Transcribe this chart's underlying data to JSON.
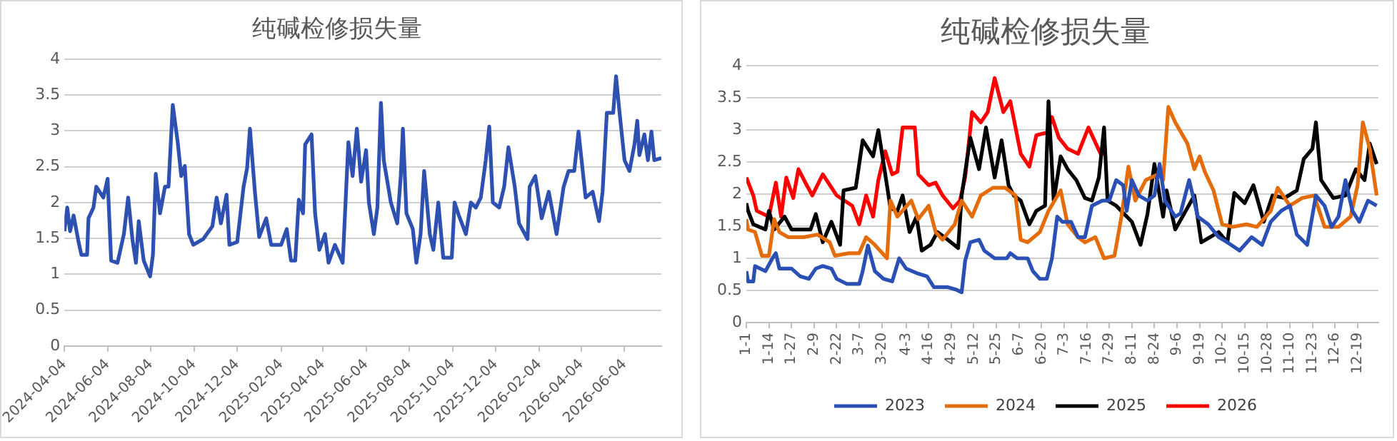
{
  "chart_data": [
    {
      "type": "line",
      "title": "纯碱检修损失量",
      "color": "#2e50b0",
      "grid": "y",
      "x": [
        "2024-04-04",
        "2024-04-08",
        "2024-04-12",
        "2024-04-17",
        "2024-04-24",
        "2024-04-28",
        "2024-05-06",
        "2024-05-08",
        "2024-05-15",
        "2024-05-19",
        "2024-05-29",
        "2024-06-04",
        "2024-06-09",
        "2024-06-18",
        "2024-06-27",
        "2024-07-03",
        "2024-07-09",
        "2024-07-14",
        "2024-07-18",
        "2024-07-25",
        "2024-08-03",
        "2024-08-07",
        "2024-08-11",
        "2024-08-17",
        "2024-08-24",
        "2024-08-29",
        "2024-09-04",
        "2024-09-11",
        "2024-09-16",
        "2024-09-21",
        "2024-09-27",
        "2024-10-03",
        "2024-10-17",
        "2024-10-30",
        "2024-11-05",
        "2024-11-11",
        "2024-11-19",
        "2024-11-23",
        "2024-12-04",
        "2024-12-13",
        "2024-12-18",
        "2024-12-22",
        "2024-12-29",
        "2025-01-04",
        "2025-01-14",
        "2025-01-21",
        "2025-02-04",
        "2025-02-12",
        "2025-02-18",
        "2025-02-24",
        "2025-03-01",
        "2025-03-07",
        "2025-03-10",
        "2025-03-19",
        "2025-03-24",
        "2025-03-30",
        "2025-04-07",
        "2025-04-12",
        "2025-04-21",
        "2025-05-02",
        "2025-05-10",
        "2025-05-16",
        "2025-05-22",
        "2025-05-28",
        "2025-06-04",
        "2025-06-08",
        "2025-06-15",
        "2025-06-20",
        "2025-06-25",
        "2025-06-29",
        "2025-07-09",
        "2025-07-18",
        "2025-07-23",
        "2025-07-26",
        "2025-07-31",
        "2025-08-09",
        "2025-08-14",
        "2025-08-20",
        "2025-08-25",
        "2025-09-02",
        "2025-09-07",
        "2025-09-14",
        "2025-09-21",
        "2025-10-03",
        "2025-10-07",
        "2025-10-13",
        "2025-10-23",
        "2025-10-30",
        "2025-11-06",
        "2025-11-13",
        "2025-11-20",
        "2025-11-25",
        "2025-11-30",
        "2025-12-09",
        "2025-12-16",
        "2025-12-22",
        "2025-12-31",
        "2026-01-06",
        "2026-01-18",
        "2026-01-21",
        "2026-01-29",
        "2026-02-07",
        "2026-02-17",
        "2026-02-28",
        "2026-03-10",
        "2026-03-17",
        "2026-03-25",
        "2026-03-31",
        "2026-04-10",
        "2026-04-20",
        "2026-04-29",
        "2026-05-04",
        "2026-05-10",
        "2026-05-19",
        "2026-05-23",
        "2026-05-28",
        "2026-06-04",
        "2026-06-11",
        "2026-06-18",
        "2026-06-22",
        "2026-06-25",
        "2026-07-02",
        "2026-07-07",
        "2026-07-12",
        "2026-07-16",
        "2026-07-26"
      ],
      "values": [
        1.6,
        1.93,
        1.6,
        1.82,
        1.45,
        1.27,
        1.27,
        1.78,
        1.93,
        2.22,
        2.07,
        2.33,
        1.19,
        1.16,
        1.56,
        2.07,
        1.49,
        1.16,
        1.74,
        1.19,
        0.97,
        1.27,
        2.4,
        1.85,
        2.22,
        2.22,
        3.36,
        2.84,
        2.37,
        2.51,
        1.56,
        1.41,
        1.49,
        1.67,
        2.07,
        1.71,
        2.11,
        1.41,
        1.45,
        2.22,
        2.48,
        3.03,
        2.15,
        1.52,
        1.78,
        1.41,
        1.41,
        1.63,
        1.19,
        1.19,
        2.04,
        1.85,
        2.81,
        2.95,
        1.85,
        1.34,
        1.56,
        1.16,
        1.41,
        1.16,
        2.84,
        2.37,
        3.03,
        2.29,
        2.73,
        2.0,
        1.56,
        1.93,
        3.39,
        2.59,
        2.0,
        1.71,
        2.37,
        3.03,
        1.85,
        1.63,
        1.16,
        1.56,
        2.44,
        1.56,
        1.34,
        2.0,
        1.23,
        1.23,
        2.0,
        1.82,
        1.56,
        2.0,
        1.93,
        2.07,
        2.59,
        3.06,
        2.0,
        1.93,
        2.22,
        2.77,
        2.22,
        1.71,
        1.49,
        2.22,
        2.37,
        1.78,
        2.15,
        1.56,
        2.22,
        2.44,
        2.44,
        2.99,
        2.07,
        2.15,
        1.74,
        2.15,
        3.25,
        3.25,
        3.76,
        3.25,
        2.59,
        2.44,
        2.81,
        3.14,
        2.66,
        2.95,
        2.59,
        2.99,
        2.59,
        2.62
      ],
      "xlim": [
        "2024-04-04",
        "2026-07-26"
      ],
      "xticks": [
        "2024-04-04",
        "2024-06-04",
        "2024-08-04",
        "2024-10-04",
        "2024-12-04",
        "2025-02-04",
        "2025-04-04",
        "2025-06-04",
        "2025-08-04",
        "2025-10-04",
        "2025-12-04",
        "2026-02-04",
        "2026-04-04",
        "2026-06-04"
      ],
      "ylim": [
        0,
        4
      ],
      "yticks": [
        0,
        0.5,
        1,
        1.5,
        2,
        2.5,
        3,
        3.5,
        4
      ]
    },
    {
      "type": "line",
      "title": "纯碱检修损失量",
      "grid": "y",
      "legend": "bottom",
      "xlim": [
        "--01-01",
        "--12-31"
      ],
      "xticks": [
        {
          "value": "--01-01",
          "label": "1-1"
        },
        {
          "value": "--01-14",
          "label": "1-14"
        },
        {
          "value": "--01-27",
          "label": "1-27"
        },
        {
          "value": "--02-09",
          "label": "2-9"
        },
        {
          "value": "--02-22",
          "label": "2-22"
        },
        {
          "value": "--03-07",
          "label": "3-7"
        },
        {
          "value": "--03-20",
          "label": "3-20"
        },
        {
          "value": "--04-03",
          "label": "4-3"
        },
        {
          "value": "--04-16",
          "label": "4-16"
        },
        {
          "value": "--04-29",
          "label": "4-29"
        },
        {
          "value": "--05-12",
          "label": "5-12"
        },
        {
          "value": "--05-25",
          "label": "5-25"
        },
        {
          "value": "--06-07",
          "label": "6-7"
        },
        {
          "value": "--06-20",
          "label": "6-20"
        },
        {
          "value": "--07-03",
          "label": "7-3"
        },
        {
          "value": "--07-16",
          "label": "7-16"
        },
        {
          "value": "--07-29",
          "label": "7-29"
        },
        {
          "value": "--08-11",
          "label": "8-11"
        },
        {
          "value": "--08-24",
          "label": "8-24"
        },
        {
          "value": "--09-06",
          "label": "9-6"
        },
        {
          "value": "--09-19",
          "label": "9-19"
        },
        {
          "value": "--10-02",
          "label": "10-2"
        },
        {
          "value": "--10-15",
          "label": "10-15"
        },
        {
          "value": "--10-28",
          "label": "10-28"
        },
        {
          "value": "--11-10",
          "label": "11-10"
        },
        {
          "value": "--11-23",
          "label": "11-23"
        },
        {
          "value": "--12-06",
          "label": "12-6"
        },
        {
          "value": "--12-19",
          "label": "12-19"
        }
      ],
      "ylim": [
        0,
        4
      ],
      "yticks": [
        0,
        0.5,
        1,
        1.5,
        2,
        2.5,
        3,
        3.5,
        4
      ],
      "series": [
        {
          "name": "2023",
          "color": "#2b50b5",
          "x": [
            "--01-01",
            "--01-02",
            "--01-05",
            "--01-06",
            "--01-12",
            "--01-16",
            "--01-18",
            "--01-20",
            "--01-27",
            "--02-01",
            "--02-06",
            "--02-10",
            "--02-14",
            "--02-19",
            "--02-22",
            "--02-28",
            "--03-07",
            "--03-09",
            "--03-12",
            "--03-16",
            "--03-21",
            "--03-26",
            "--03-30",
            "--04-03",
            "--04-10",
            "--04-15",
            "--04-19",
            "--04-27",
            "--05-02",
            "--05-05",
            "--05-07",
            "--05-10",
            "--05-15",
            "--05-18",
            "--05-24",
            "--05-31",
            "--06-02",
            "--06-06",
            "--06-12",
            "--06-15",
            "--06-19",
            "--06-23",
            "--06-26",
            "--06-29",
            "--07-02",
            "--07-07",
            "--07-11",
            "--07-15",
            "--07-19",
            "--07-25",
            "--07-29",
            "--08-02",
            "--08-06",
            "--08-08",
            "--08-11",
            "--08-15",
            "--08-20",
            "--08-24",
            "--08-27",
            "--08-30",
            "--09-05",
            "--09-08",
            "--09-13",
            "--09-18",
            "--09-24",
            "--09-30",
            "--10-05",
            "--10-12",
            "--10-19",
            "--10-25",
            "--10-30",
            "--11-05",
            "--11-10",
            "--11-14",
            "--11-20",
            "--11-25",
            "--11-30",
            "--12-04",
            "--12-08",
            "--12-12",
            "--12-16",
            "--12-20",
            "--12-25",
            "--12-30"
          ],
          "values": [
            0.8,
            0.64,
            0.64,
            0.88,
            0.8,
            1.0,
            1.08,
            0.84,
            0.84,
            0.72,
            0.68,
            0.84,
            0.88,
            0.84,
            0.68,
            0.6,
            0.6,
            0.8,
            1.2,
            0.8,
            0.68,
            0.64,
            1.0,
            0.84,
            0.76,
            0.72,
            0.55,
            0.55,
            0.51,
            0.47,
            0.96,
            1.25,
            1.29,
            1.12,
            1.0,
            1.0,
            1.08,
            1.0,
            1.0,
            0.8,
            0.68,
            0.68,
            1.0,
            1.65,
            1.57,
            1.57,
            1.33,
            1.33,
            1.82,
            1.9,
            1.9,
            2.22,
            2.14,
            1.74,
            2.22,
            1.98,
            1.9,
            1.98,
            2.47,
            1.9,
            1.65,
            1.7,
            2.22,
            1.65,
            1.53,
            1.33,
            1.25,
            1.12,
            1.33,
            1.21,
            1.57,
            1.74,
            1.82,
            1.37,
            1.21,
            1.98,
            1.82,
            1.49,
            1.65,
            2.22,
            1.74,
            1.57,
            1.9,
            1.82
          ]
        },
        {
          "name": "2024",
          "color": "#e46c0a",
          "x": [
            "--01-01",
            "--01-02",
            "--01-06",
            "--01-10",
            "--01-14",
            "--01-17",
            "--01-20",
            "--01-25",
            "--02-03",
            "--02-11",
            "--02-18",
            "--02-21",
            "--03-01",
            "--03-07",
            "--03-11",
            "--03-16",
            "--03-23",
            "--03-25",
            "--03-29",
            "--04-06",
            "--04-10",
            "--04-16",
            "--04-20",
            "--04-24",
            "--05-01",
            "--05-05",
            "--05-11",
            "--05-16",
            "--05-23",
            "--05-30",
            "--06-05",
            "--06-08",
            "--06-12",
            "--06-19",
            "--06-24",
            "--07-01",
            "--07-05",
            "--07-11",
            "--07-15",
            "--07-21",
            "--07-26",
            "--08-01",
            "--08-05",
            "--08-09",
            "--08-13",
            "--08-19",
            "--08-26",
            "--08-29",
            "--09-01",
            "--09-05",
            "--09-12",
            "--09-16",
            "--09-19",
            "--09-22",
            "--09-27",
            "--10-02",
            "--10-08",
            "--10-16",
            "--10-22",
            "--10-30",
            "--11-03",
            "--11-10",
            "--11-17",
            "--11-24",
            "--11-30",
            "--12-08",
            "--12-15",
            "--12-19",
            "--12-22",
            "--12-26",
            "--12-30"
          ],
          "values": [
            1.61,
            1.45,
            1.41,
            1.04,
            1.04,
            1.61,
            1.41,
            1.33,
            1.33,
            1.37,
            1.25,
            1.04,
            1.08,
            1.08,
            1.33,
            1.21,
            1.0,
            1.9,
            1.65,
            1.9,
            1.61,
            1.82,
            1.41,
            1.29,
            1.53,
            1.9,
            1.65,
            1.98,
            2.1,
            2.1,
            1.98,
            1.29,
            1.25,
            1.41,
            1.74,
            2.06,
            1.53,
            1.33,
            1.25,
            1.33,
            1.0,
            1.04,
            1.65,
            2.43,
            1.9,
            2.22,
            2.31,
            2.22,
            3.36,
            3.12,
            2.79,
            2.39,
            2.59,
            2.35,
            2.06,
            1.53,
            1.49,
            1.53,
            1.49,
            1.74,
            2.1,
            1.82,
            1.94,
            1.98,
            1.49,
            1.49,
            1.65,
            2.14,
            3.12,
            2.71,
            1.98
          ]
        },
        {
          "name": "2025",
          "color": "#000000",
          "x": [
            "--01-01",
            "--01-02",
            "--01-05",
            "--01-12",
            "--01-14",
            "--01-17",
            "--01-23",
            "--01-27",
            "--02-07",
            "--02-10",
            "--02-14",
            "--02-19",
            "--02-24",
            "--02-26",
            "--03-05",
            "--03-09",
            "--03-15",
            "--03-18",
            "--03-22",
            "--03-25",
            "--03-29",
            "--04-01",
            "--04-05",
            "--04-09",
            "--04-12",
            "--04-17",
            "--04-21",
            "--04-27",
            "--05-03",
            "--05-05",
            "--05-10",
            "--05-15",
            "--05-19",
            "--05-24",
            "--05-28",
            "--06-01",
            "--06-04",
            "--06-08",
            "--06-13",
            "--06-17",
            "--06-22",
            "--06-24",
            "--06-27",
            "--07-01",
            "--07-05",
            "--07-10",
            "--07-15",
            "--07-19",
            "--07-23",
            "--07-26",
            "--07-28",
            "--08-02",
            "--08-11",
            "--08-16",
            "--08-20",
            "--08-24",
            "--08-29",
            "--08-31",
            "--09-05",
            "--09-10",
            "--09-16",
            "--09-20",
            "--09-30",
            "--10-05",
            "--10-09",
            "--10-15",
            "--10-20",
            "--10-26",
            "--10-31",
            "--11-07",
            "--11-14",
            "--11-18",
            "--11-23",
            "--11-25",
            "--11-28",
            "--12-05",
            "--12-12",
            "--12-18",
            "--12-23",
            "--12-26",
            "--12-30"
          ],
          "values": [
            1.86,
            1.74,
            1.53,
            1.45,
            1.74,
            1.45,
            1.65,
            1.45,
            1.45,
            1.69,
            1.25,
            1.57,
            1.21,
            2.06,
            2.1,
            2.84,
            2.59,
            3.0,
            2.31,
            1.78,
            1.74,
            1.98,
            1.41,
            1.65,
            1.12,
            1.21,
            1.41,
            1.29,
            1.16,
            1.98,
            2.88,
            2.39,
            3.04,
            2.26,
            2.84,
            2.14,
            1.98,
            1.9,
            1.53,
            1.74,
            1.82,
            3.45,
            1.9,
            2.59,
            2.39,
            2.22,
            1.94,
            1.9,
            2.26,
            3.04,
            1.9,
            1.82,
            1.57,
            1.21,
            1.69,
            2.47,
            1.65,
            2.06,
            1.45,
            1.69,
            1.98,
            1.25,
            1.41,
            1.25,
            2.02,
            1.86,
            2.14,
            1.57,
            1.98,
            1.94,
            2.06,
            2.55,
            2.71,
            3.12,
            2.22,
            1.94,
            1.98,
            2.39,
            2.22,
            2.79,
            2.47
          ]
        },
        {
          "name": "2026",
          "color": "#ff0000",
          "x": [
            "--01-01",
            "--01-05",
            "--01-07",
            "--01-14",
            "--01-18",
            "--01-21",
            "--01-24",
            "--01-28",
            "--01-31",
            "--02-04",
            "--02-08",
            "--02-14",
            "--02-22",
            "--03-03",
            "--03-07",
            "--03-11",
            "--03-15",
            "--03-18",
            "--03-22",
            "--03-26",
            "--03-29",
            "--04-01",
            "--04-08",
            "--04-10",
            "--04-16",
            "--04-20",
            "--04-24",
            "--04-30",
            "--05-04",
            "--05-07",
            "--05-11",
            "--05-16",
            "--05-20",
            "--05-24",
            "--05-29",
            "--06-02",
            "--06-08",
            "--06-13",
            "--06-17",
            "--06-23",
            "--06-26",
            "--06-30",
            "--07-05",
            "--07-11",
            "--07-17",
            "--07-24",
            "--07-27"
          ],
          "values": [
            2.26,
            1.98,
            1.74,
            1.65,
            2.18,
            1.65,
            2.26,
            1.94,
            2.39,
            2.18,
            1.98,
            2.31,
            1.98,
            1.82,
            1.53,
            1.98,
            1.65,
            2.22,
            2.67,
            2.31,
            2.35,
            3.04,
            3.04,
            2.31,
            2.14,
            2.18,
            1.98,
            1.78,
            1.9,
            2.26,
            3.28,
            3.12,
            3.28,
            3.81,
            3.28,
            3.45,
            2.63,
            2.43,
            2.92,
            2.96,
            3.2,
            2.88,
            2.71,
            2.63,
            3.04,
            2.63,
            2.63
          ]
        }
      ]
    }
  ]
}
